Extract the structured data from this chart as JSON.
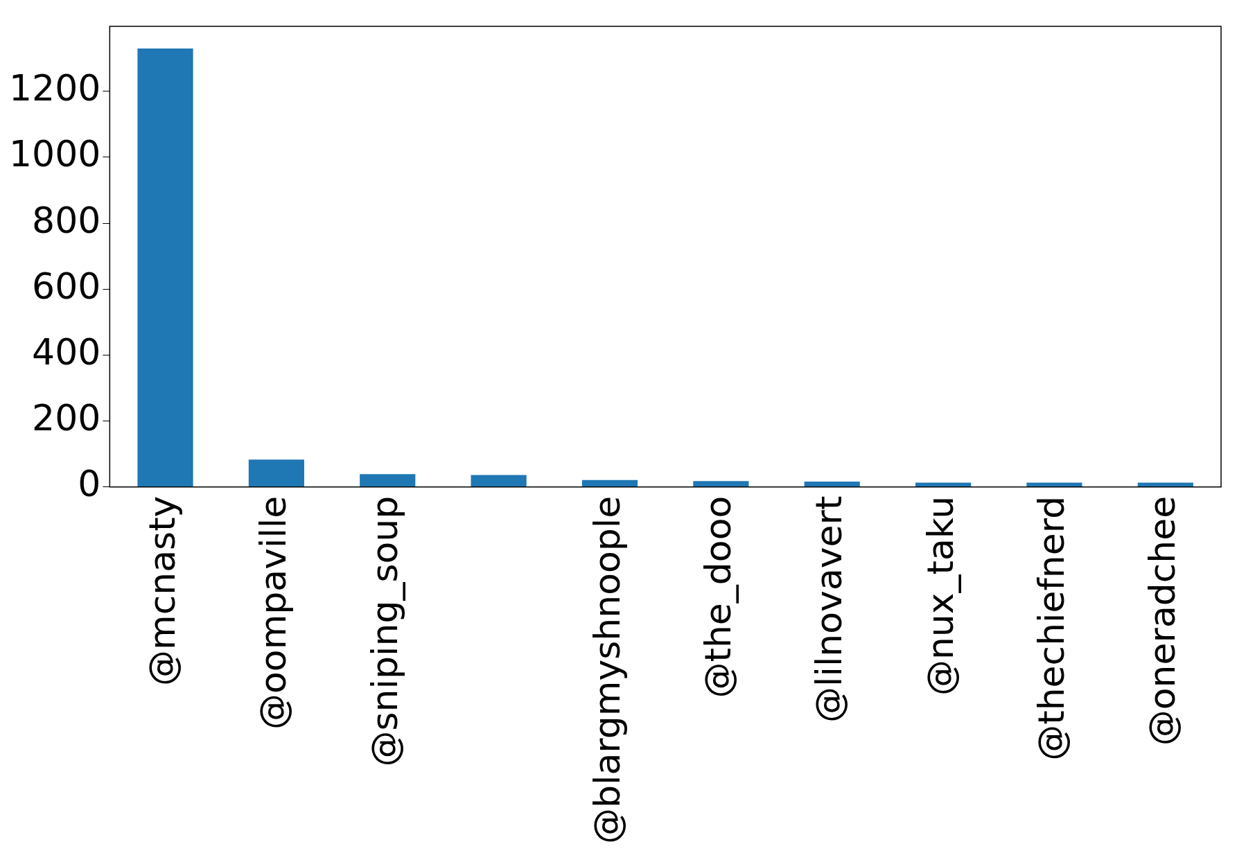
{
  "chart_data": {
    "type": "bar",
    "categories": [
      "@mcnasty",
      "@oompaville",
      "@sniping_soup",
      null,
      "@blargmyshnoople",
      "@the_dooo",
      "@lilnovavert",
      "@nux_taku",
      "@thechiefnerd",
      "@oneradchee"
    ],
    "values": [
      1330,
      83,
      39,
      36,
      21,
      18,
      16,
      13,
      13,
      13
    ],
    "color": "#1f77b4",
    "ylim": [
      0,
      1397
    ],
    "yticks": [
      0,
      200,
      400,
      600,
      800,
      1000,
      1200
    ],
    "grid": false,
    "legend": false
  }
}
